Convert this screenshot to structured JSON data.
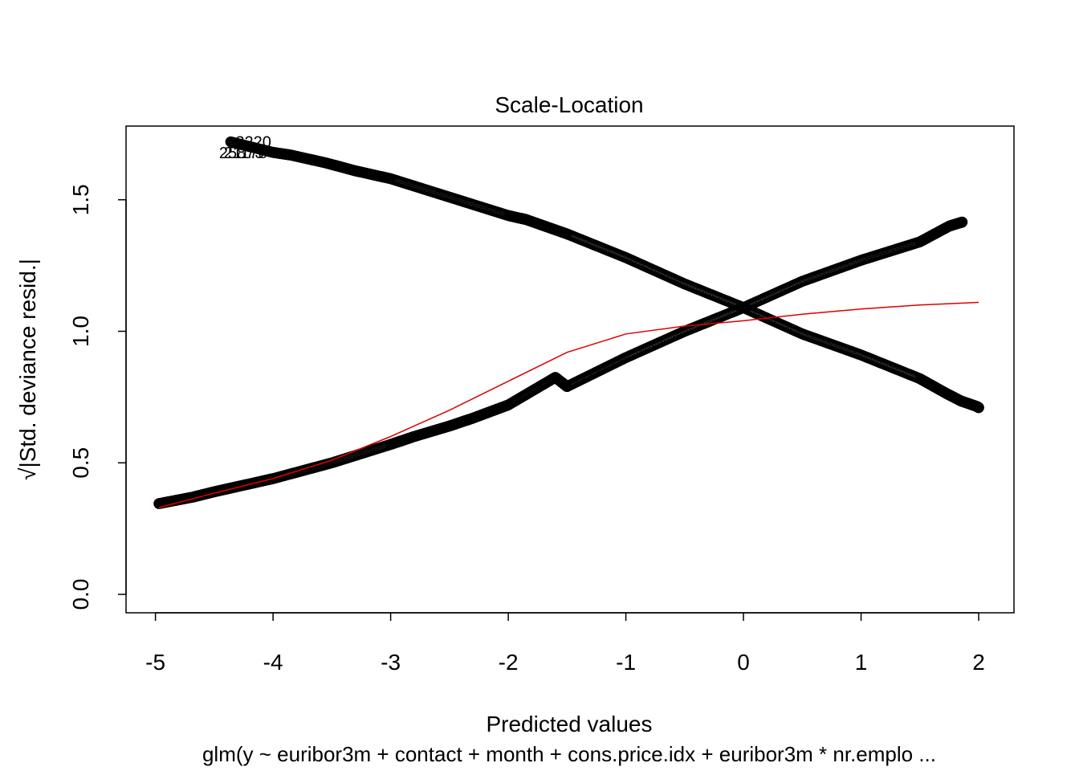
{
  "chart_data": {
    "type": "scatter",
    "title": "Scale-Location",
    "xlabel": "Predicted values",
    "ylabel": "√|Std. deviance resid.|",
    "subtitle": "glm(y ~ euribor3m + contact + month + cons.price.idx + euribor3m * nr.emplo ...",
    "xlim": [
      -5.25,
      2.3
    ],
    "ylim": [
      -0.07,
      1.78
    ],
    "x_ticks": [
      -5,
      -4,
      -3,
      -2,
      -1,
      0,
      1,
      2
    ],
    "x_tick_labels": [
      "-5",
      "-4",
      "-3",
      "-2",
      "-1",
      "0",
      "1",
      "2"
    ],
    "y_ticks": [
      0.0,
      0.5,
      1.0,
      1.5
    ],
    "y_tick_labels": [
      "0.0",
      "0.5",
      "1.0",
      "1.5"
    ],
    "grid": false,
    "series": [
      {
        "values_x": [
          -4.36,
          -4.0,
          -3.85,
          -3.55,
          -3.3,
          -3.0,
          -2.5,
          -2.0,
          -1.85,
          -1.5,
          -1.0,
          -0.5,
          0.0,
          0.5,
          1.0,
          1.5,
          1.72,
          1.85,
          1.98,
          2.0
        ],
        "values_y": [
          1.72,
          1.68,
          1.67,
          1.64,
          1.61,
          1.58,
          1.51,
          1.44,
          1.425,
          1.37,
          1.28,
          1.18,
          1.09,
          0.99,
          0.91,
          0.82,
          0.765,
          0.735,
          0.715,
          0.71
        ]
      },
      {
        "values_x": [
          -4.97,
          -4.68,
          -4.5,
          -4.3,
          -4.0,
          -3.5,
          -3.0,
          -2.8,
          -2.5,
          -2.3,
          -2.0,
          -1.6,
          -1.5,
          -1.0,
          -0.5,
          0.0,
          0.5,
          1.0,
          1.5,
          1.75,
          1.86
        ],
        "values_y": [
          0.345,
          0.37,
          0.39,
          0.41,
          0.44,
          0.5,
          0.57,
          0.6,
          0.64,
          0.67,
          0.72,
          0.825,
          0.79,
          0.9,
          1.0,
          1.09,
          1.19,
          1.27,
          1.34,
          1.4,
          1.415
        ]
      }
    ],
    "smooth_line": {
      "color": "#dd0000",
      "x": [
        -4.97,
        -4.5,
        -4.0,
        -3.5,
        -3.0,
        -2.5,
        -2.0,
        -1.5,
        -1.0,
        -0.5,
        0.0,
        0.5,
        1.0,
        1.5,
        2.0
      ],
      "y": [
        0.33,
        0.385,
        0.44,
        0.51,
        0.6,
        0.7,
        0.81,
        0.92,
        0.99,
        1.02,
        1.04,
        1.065,
        1.085,
        1.1,
        1.11
      ]
    },
    "annotations": [
      {
        "text": "3220",
        "x": -4.36,
        "y": 1.72
      },
      {
        "text": "25873",
        "x": -4.5,
        "y": 1.68
      },
      {
        "text": "21178",
        "x": -4.46,
        "y": 1.68
      }
    ],
    "point_color": "#000000"
  }
}
